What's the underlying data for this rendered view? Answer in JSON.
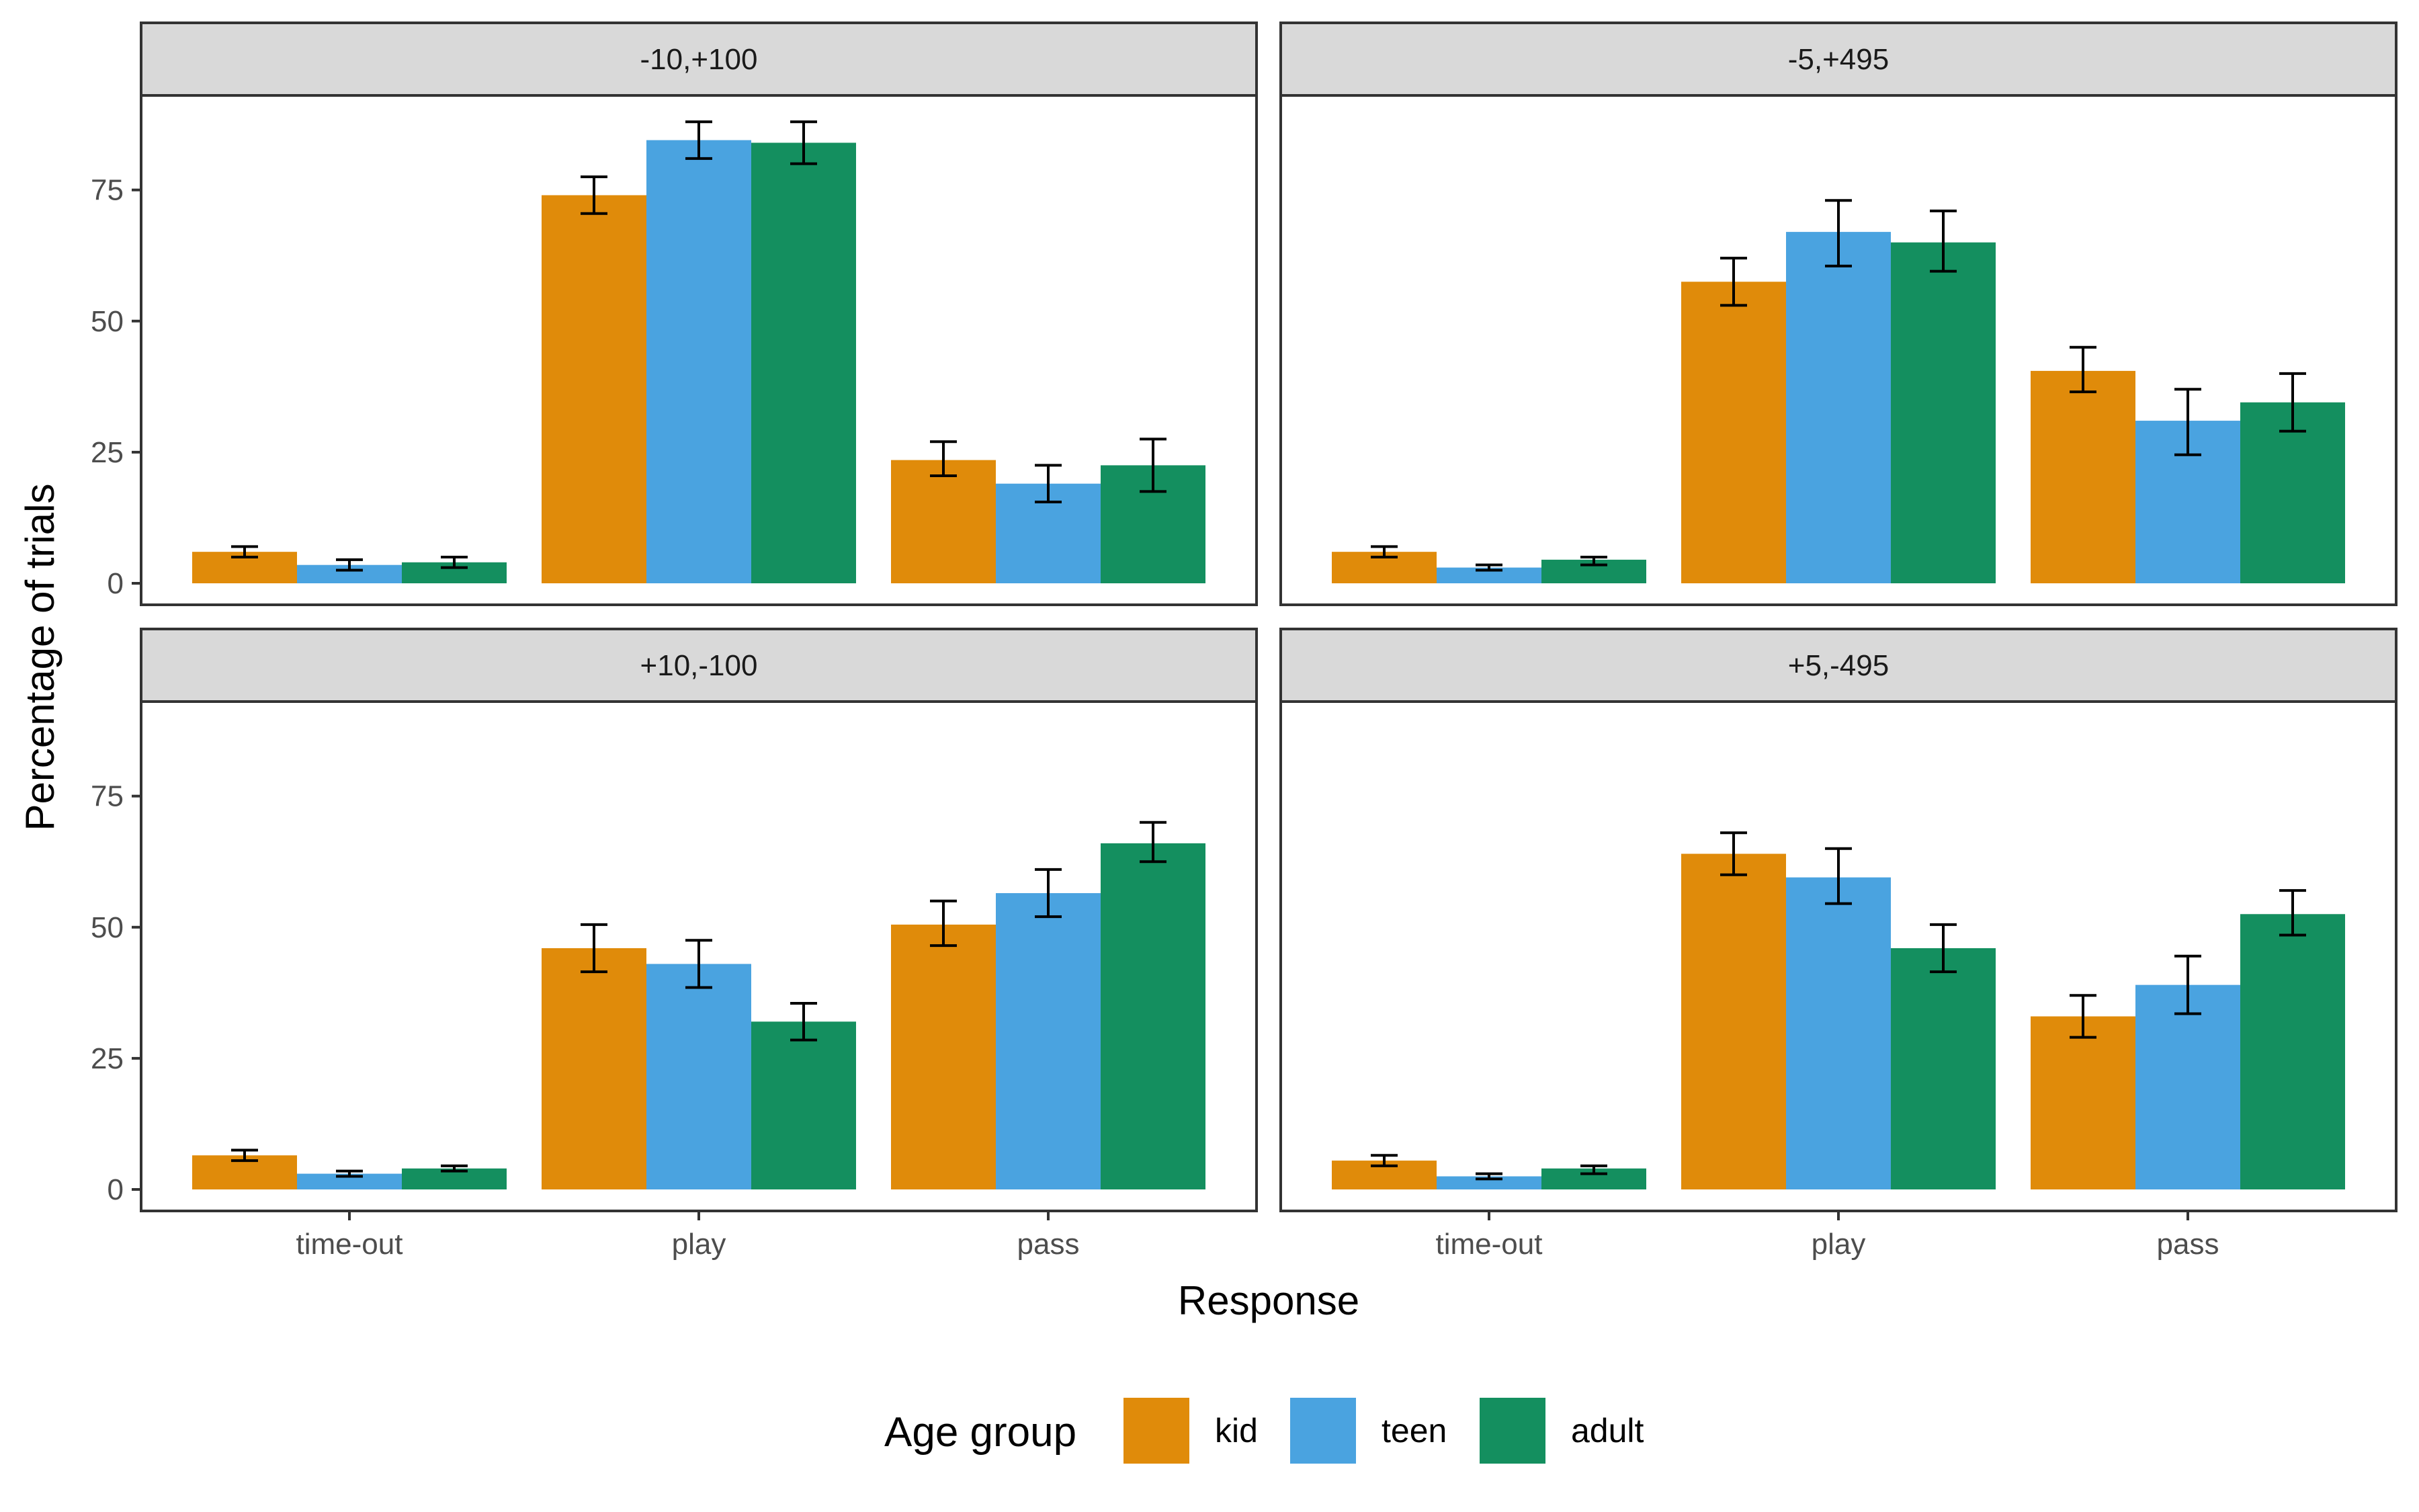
{
  "chart_data": {
    "type": "bar",
    "xlabel": "Response",
    "ylabel": "Percentage of trials",
    "ylim": [
      0,
      92
    ],
    "yticks": [
      0,
      25,
      50,
      75
    ],
    "categories": [
      "time-out",
      "play",
      "pass"
    ],
    "legend": {
      "title": "Age group",
      "position": "bottom",
      "items": [
        {
          "name": "kid",
          "color": "#E08B0A"
        },
        {
          "name": "teen",
          "color": "#4AA3E0"
        },
        {
          "name": "adult",
          "color": "#148F5F"
        }
      ]
    },
    "panels": [
      {
        "title": "-10,+100",
        "series": [
          {
            "name": "kid",
            "values": [
              6,
              74,
              23.5
            ],
            "err_low": [
              5,
              70.5,
              20.5
            ],
            "err_high": [
              7,
              77.5,
              27
            ]
          },
          {
            "name": "teen",
            "values": [
              3.5,
              84.5,
              19
            ],
            "err_low": [
              2.5,
              81,
              15.5
            ],
            "err_high": [
              4.5,
              88,
              22.5
            ]
          },
          {
            "name": "adult",
            "values": [
              4,
              84,
              22.5
            ],
            "err_low": [
              3,
              80,
              17.5
            ],
            "err_high": [
              5,
              88,
              27.5
            ]
          }
        ]
      },
      {
        "title": "-5,+495",
        "series": [
          {
            "name": "kid",
            "values": [
              6,
              57.5,
              40.5
            ],
            "err_low": [
              5,
              53,
              36.5
            ],
            "err_high": [
              7,
              62,
              45
            ]
          },
          {
            "name": "teen",
            "values": [
              3,
              67,
              31
            ],
            "err_low": [
              2.5,
              60.5,
              24.5
            ],
            "err_high": [
              3.5,
              73,
              37
            ]
          },
          {
            "name": "adult",
            "values": [
              4.5,
              65,
              34.5
            ],
            "err_low": [
              3.5,
              59.5,
              29
            ],
            "err_high": [
              5,
              71,
              40
            ]
          }
        ]
      },
      {
        "title": "+10,-100",
        "series": [
          {
            "name": "kid",
            "values": [
              6.5,
              46,
              50.5
            ],
            "err_low": [
              5.5,
              41.5,
              46.5
            ],
            "err_high": [
              7.5,
              50.5,
              55
            ]
          },
          {
            "name": "teen",
            "values": [
              3,
              43,
              56.5
            ],
            "err_low": [
              2.5,
              38.5,
              52
            ],
            "err_high": [
              3.5,
              47.5,
              61
            ]
          },
          {
            "name": "adult",
            "values": [
              4,
              32,
              66
            ],
            "err_low": [
              3.5,
              28.5,
              62.5
            ],
            "err_high": [
              4.5,
              35.5,
              70
            ]
          }
        ]
      },
      {
        "title": "+5,-495",
        "series": [
          {
            "name": "kid",
            "values": [
              5.5,
              64,
              33
            ],
            "err_low": [
              4.5,
              60,
              29
            ],
            "err_high": [
              6.5,
              68,
              37
            ]
          },
          {
            "name": "teen",
            "values": [
              2.5,
              59.5,
              39
            ],
            "err_low": [
              2,
              54.5,
              33.5
            ],
            "err_high": [
              3,
              65,
              44.5
            ]
          },
          {
            "name": "adult",
            "values": [
              4,
              46,
              52.5
            ],
            "err_low": [
              3,
              41.5,
              48.5
            ],
            "err_high": [
              4.5,
              50.5,
              57
            ]
          }
        ]
      }
    ]
  }
}
